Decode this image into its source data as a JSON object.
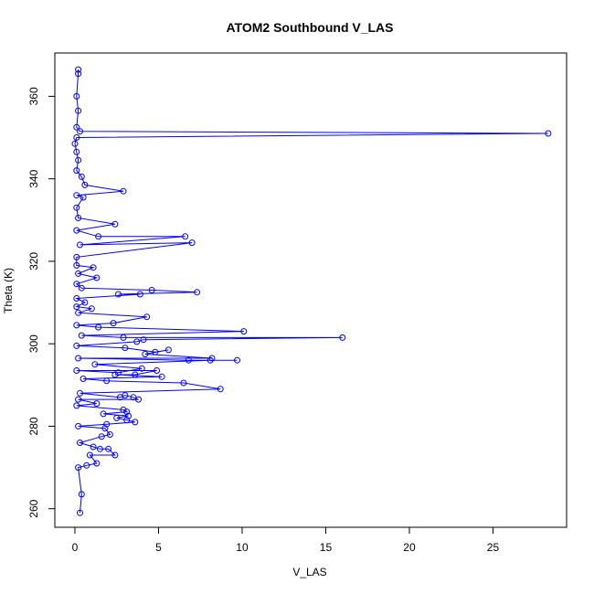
{
  "chart_data": {
    "type": "line",
    "title": "ATOM2 Southbound V_LAS",
    "xlabel": "V_LAS",
    "ylabel": "Theta (K)",
    "xlim": [
      -1.2,
      29.4
    ],
    "ylim": [
      255.5,
      370.5
    ],
    "x_ticks": [
      0,
      5,
      10,
      15,
      20,
      25
    ],
    "y_ticks": [
      260,
      280,
      300,
      320,
      340,
      360
    ],
    "grid": false,
    "legend": "none",
    "markers": "open-circle",
    "series": [
      {
        "color": "#0000ff",
        "points": [
          [
            0.3,
            259.0
          ],
          [
            0.4,
            263.5
          ],
          [
            0.2,
            270.0
          ],
          [
            0.7,
            270.5
          ],
          [
            1.3,
            271.0
          ],
          [
            0.9,
            273.0
          ],
          [
            2.4,
            273.0
          ],
          [
            2.0,
            274.5
          ],
          [
            1.5,
            274.5
          ],
          [
            1.1,
            275.0
          ],
          [
            0.3,
            276.0
          ],
          [
            1.6,
            277.5
          ],
          [
            2.1,
            278.0
          ],
          [
            1.8,
            279.5
          ],
          [
            0.2,
            280.0
          ],
          [
            1.9,
            280.5
          ],
          [
            3.6,
            281.0
          ],
          [
            3.1,
            281.5
          ],
          [
            2.5,
            282.0
          ],
          [
            3.2,
            282.5
          ],
          [
            1.7,
            283.0
          ],
          [
            3.1,
            283.5
          ],
          [
            2.9,
            284.0
          ],
          [
            0.1,
            285.0
          ],
          [
            1.3,
            285.5
          ],
          [
            0.2,
            286.5
          ],
          [
            3.8,
            286.5
          ],
          [
            3.5,
            287.0
          ],
          [
            3.0,
            287.5
          ],
          [
            2.7,
            287.0
          ],
          [
            0.3,
            288.0
          ],
          [
            8.7,
            289.0
          ],
          [
            6.5,
            290.5
          ],
          [
            1.9,
            291.0
          ],
          [
            0.5,
            291.5
          ],
          [
            5.2,
            292.0
          ],
          [
            2.4,
            292.5
          ],
          [
            3.6,
            292.5
          ],
          [
            4.9,
            293.5
          ],
          [
            0.1,
            293.5
          ],
          [
            2.6,
            293.0
          ],
          [
            4.0,
            294.0
          ],
          [
            1.2,
            295.0
          ],
          [
            8.1,
            296.0
          ],
          [
            9.7,
            296.0
          ],
          [
            6.8,
            296.0
          ],
          [
            0.2,
            296.5
          ],
          [
            8.2,
            296.5
          ],
          [
            4.2,
            297.5
          ],
          [
            5.6,
            298.5
          ],
          [
            4.8,
            298.0
          ],
          [
            3.0,
            299.0
          ],
          [
            0.1,
            299.5
          ],
          [
            3.7,
            300.5
          ],
          [
            4.1,
            301.0
          ],
          [
            16.0,
            301.5
          ],
          [
            2.9,
            301.5
          ],
          [
            0.4,
            302.0
          ],
          [
            10.1,
            303.0
          ],
          [
            1.4,
            304.0
          ],
          [
            0.1,
            304.5
          ],
          [
            2.3,
            305.0
          ],
          [
            4.3,
            306.5
          ],
          [
            0.2,
            307.5
          ],
          [
            1.0,
            308.5
          ],
          [
            0.1,
            309.0
          ],
          [
            0.6,
            310.0
          ],
          [
            0.1,
            311.0
          ],
          [
            3.9,
            312.0
          ],
          [
            2.6,
            312.0
          ],
          [
            7.3,
            312.5
          ],
          [
            4.6,
            313.0
          ],
          [
            0.4,
            313.5
          ],
          [
            0.1,
            314.5
          ],
          [
            1.3,
            316.0
          ],
          [
            0.2,
            317.0
          ],
          [
            1.1,
            318.5
          ],
          [
            0.1,
            319.0
          ],
          [
            0.1,
            321.0
          ],
          [
            7.0,
            324.5
          ],
          [
            0.3,
            324.0
          ],
          [
            6.6,
            326.0
          ],
          [
            1.4,
            326.0
          ],
          [
            0.1,
            327.5
          ],
          [
            2.4,
            329.0
          ],
          [
            0.2,
            330.5
          ],
          [
            0.1,
            333.0
          ],
          [
            0.5,
            335.5
          ],
          [
            0.1,
            336.0
          ],
          [
            2.9,
            337.0
          ],
          [
            0.6,
            338.5
          ],
          [
            0.4,
            340.5
          ],
          [
            0.1,
            342.0
          ],
          [
            0.2,
            344.5
          ],
          [
            0.1,
            346.5
          ],
          [
            0.0,
            348.5
          ],
          [
            0.1,
            350.0
          ],
          [
            28.3,
            351.0
          ],
          [
            0.3,
            351.5
          ],
          [
            0.1,
            352.5
          ],
          [
            0.2,
            356.5
          ],
          [
            0.1,
            360.0
          ],
          [
            0.2,
            365.5
          ],
          [
            0.2,
            366.5
          ]
        ]
      }
    ]
  }
}
